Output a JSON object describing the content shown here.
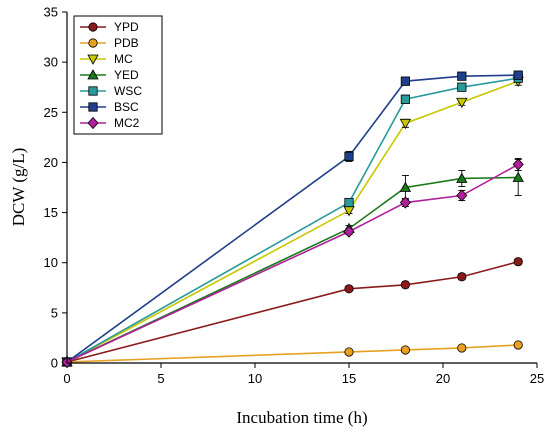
{
  "chart_data": {
    "type": "line",
    "title": "",
    "xlabel": "Incubation time (h)",
    "ylabel": "DCW (g/L)",
    "xlim": [
      0,
      25
    ],
    "ylim": [
      0,
      35
    ],
    "xticks": [
      0,
      5,
      10,
      15,
      20,
      25
    ],
    "yticks": [
      0,
      5,
      10,
      15,
      20,
      25,
      30,
      35
    ],
    "grid": false,
    "legend_position": "top-left",
    "series": [
      {
        "name": "YPD",
        "color": "#8b1a1a",
        "marker": "circle",
        "x": [
          0,
          15,
          18,
          21,
          24
        ],
        "y": [
          0.1,
          7.4,
          7.8,
          8.6,
          10.1
        ],
        "err": [
          0,
          0.2,
          0.3,
          0.3,
          0.3
        ]
      },
      {
        "name": "PDB",
        "color": "#e8a020",
        "marker": "circle",
        "x": [
          0,
          15,
          18,
          21,
          24
        ],
        "y": [
          0.1,
          1.1,
          1.3,
          1.5,
          1.8
        ],
        "err": [
          0,
          0.1,
          0.1,
          0.1,
          0.1
        ]
      },
      {
        "name": "MC",
        "color": "#c8c800",
        "marker": "triangle-down",
        "x": [
          0,
          15,
          18,
          21,
          24
        ],
        "y": [
          0.1,
          15.2,
          23.9,
          26.0,
          28.1
        ],
        "err": [
          0,
          0.3,
          0.4,
          0.3,
          0.4
        ]
      },
      {
        "name": "YED",
        "color": "#1a7a1a",
        "marker": "triangle-up",
        "x": [
          0,
          15,
          18,
          21,
          24
        ],
        "y": [
          0.1,
          13.4,
          17.5,
          18.4,
          18.5
        ],
        "err": [
          0,
          0.3,
          1.2,
          0.8,
          1.8
        ]
      },
      {
        "name": "WSC",
        "color": "#2a9a9a",
        "marker": "square",
        "x": [
          0,
          15,
          18,
          21,
          24
        ],
        "y": [
          0.1,
          16.0,
          26.3,
          27.5,
          28.4
        ],
        "err": [
          0,
          0.3,
          0.4,
          0.3,
          0.3
        ]
      },
      {
        "name": "BSC",
        "color": "#1f3f8a",
        "marker": "square",
        "x": [
          0,
          15,
          18,
          21,
          24
        ],
        "y": [
          0.1,
          20.6,
          28.1,
          28.6,
          28.7
        ],
        "err": [
          0,
          0.5,
          0.4,
          0.3,
          0.4
        ]
      },
      {
        "name": "MC2",
        "color": "#b0209a",
        "marker": "diamond",
        "x": [
          0,
          15,
          18,
          21,
          24
        ],
        "y": [
          0.1,
          13.1,
          16.0,
          16.7,
          19.8
        ],
        "err": [
          0,
          0.3,
          0.4,
          0.5,
          0.6
        ]
      }
    ]
  }
}
